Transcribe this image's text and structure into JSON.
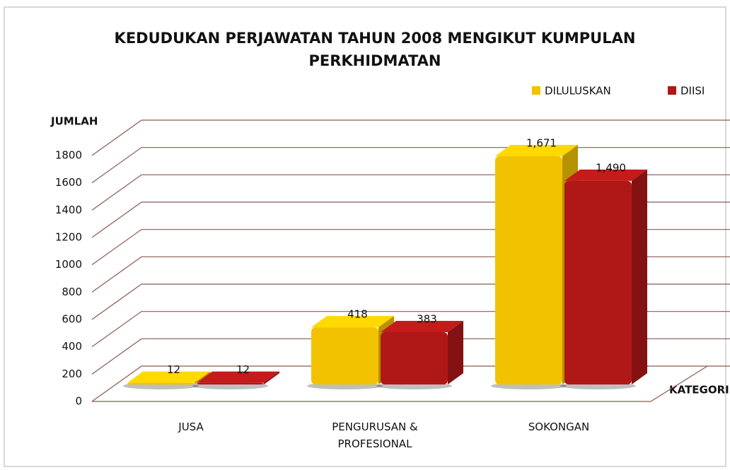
{
  "chart_data": {
    "type": "bar3d",
    "title": "KEDUDUKAN PERJAWATAN TAHUN 2008 MENGIKUT KUMPULAN PERKHIDMATAN",
    "y_label": "JUMLAH",
    "x_label": "KATEGORI",
    "categories": [
      "JUSA",
      "PENGURUSAN & PROFESIONAL",
      "SOKONGAN"
    ],
    "series": [
      {
        "name": "DILULUSKAN",
        "color": "#f2c200",
        "values": [
          12,
          418,
          1671
        ],
        "value_labels": [
          "12",
          "418",
          "1,671"
        ]
      },
      {
        "name": "DIISI",
        "color": "#b01818",
        "values": [
          12,
          383,
          1490
        ],
        "value_labels": [
          "12",
          "383",
          "1,490"
        ]
      }
    ],
    "ylim": [
      0,
      1800
    ],
    "yticks": [
      0,
      200,
      400,
      600,
      800,
      1000,
      1200,
      1400,
      1600,
      1800
    ],
    "grid": true,
    "legend": "top-right"
  }
}
